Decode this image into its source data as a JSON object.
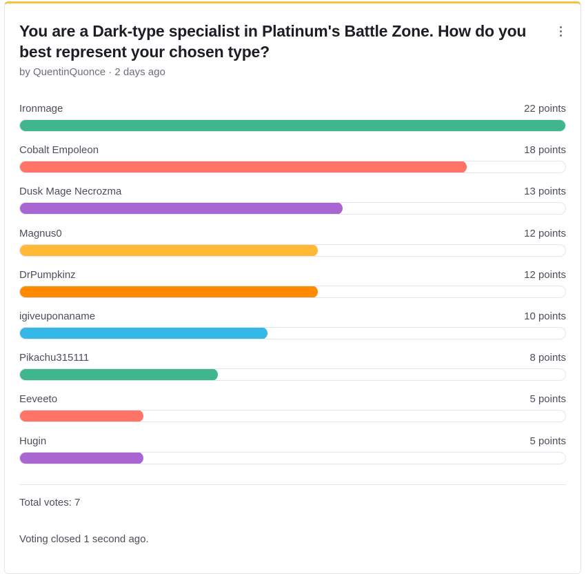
{
  "poll": {
    "title": "You are a Dark-type specialist in Platinum's Battle Zone. How do you best represent your chosen type?",
    "byline": "by QuentinQuonce · 2 days ago",
    "menu_icon": "more-vertical-icon",
    "max_points": 22,
    "options": [
      {
        "name": "Ironmage",
        "points": 22,
        "points_label": "22 points",
        "color": "#3fb68b"
      },
      {
        "name": "Cobalt Empoleon",
        "points": 18,
        "points_label": "18 points",
        "color": "#ff7466"
      },
      {
        "name": "Dusk Mage Necrozma",
        "points": 13,
        "points_label": "13 points",
        "color": "#a966d0"
      },
      {
        "name": "Magnus0",
        "points": 12,
        "points_label": "12 points",
        "color": "#ffb936"
      },
      {
        "name": "DrPumpkinz",
        "points": 12,
        "points_label": "12 points",
        "color": "#ff8a00"
      },
      {
        "name": "igiveuponaname",
        "points": 10,
        "points_label": "10 points",
        "color": "#35b8e8"
      },
      {
        "name": "Pikachu315111",
        "points": 8,
        "points_label": "8 points",
        "color": "#3fb68b"
      },
      {
        "name": "Eeveeto",
        "points": 5,
        "points_label": "5 points",
        "color": "#ff7466"
      },
      {
        "name": "Hugin",
        "points": 5,
        "points_label": "5 points",
        "color": "#a966d0"
      }
    ],
    "total_votes": "Total votes: 7",
    "status": "Voting closed 1 second ago."
  }
}
